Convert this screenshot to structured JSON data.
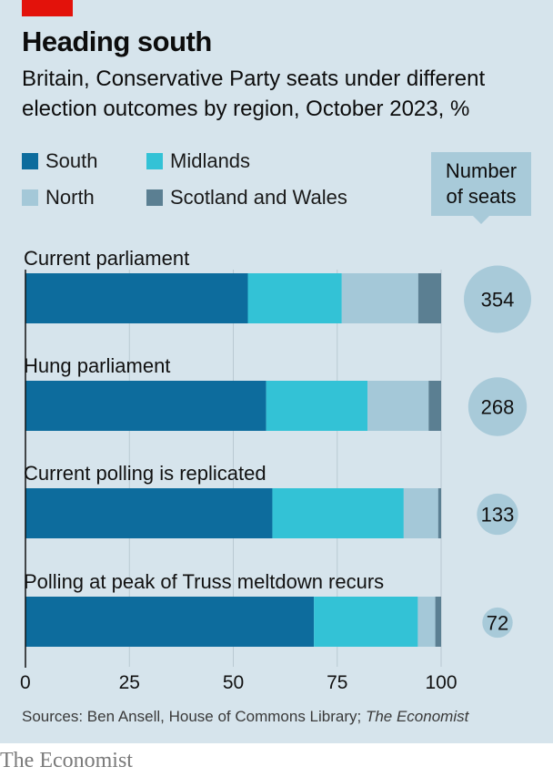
{
  "header": {
    "title": "Heading south",
    "subtitle": "Britain, Conservative Party seats under different election outcomes by region, October 2023, %"
  },
  "legend": {
    "south": "South",
    "midlands": "Midlands",
    "north": "North",
    "scotland_wales": "Scotland and Wales",
    "seats_label_line1": "Number",
    "seats_label_line2": "of seats"
  },
  "colors": {
    "south": "#0d6c9d",
    "midlands": "#33c2d6",
    "north": "#a4c8d8",
    "scotland_wales": "#5b7f92",
    "bubble": "#a8cad9",
    "panel": "#d6e4ec",
    "brand_red": "#e3120b"
  },
  "chart_data": {
    "type": "bar",
    "orientation": "horizontal",
    "stacked": true,
    "categories": [
      "Current parliament",
      "Hung parliament",
      "Current polling is replicated",
      "Polling at peak of Truss meltdown recurs"
    ],
    "series": [
      {
        "name": "South",
        "values": [
          53.5,
          57.9,
          59.4,
          69.4
        ]
      },
      {
        "name": "Midlands",
        "values": [
          22.6,
          24.4,
          31.6,
          25.0
        ]
      },
      {
        "name": "North",
        "values": [
          18.4,
          14.7,
          8.3,
          4.2
        ]
      },
      {
        "name": "Scotland and Wales",
        "values": [
          5.5,
          3.0,
          0.7,
          1.4
        ]
      }
    ],
    "seats": [
      354,
      268,
      133,
      72
    ],
    "xlim": [
      0,
      100
    ],
    "x_ticks": [
      0,
      25,
      50,
      75,
      100
    ],
    "x_tick_labels": [
      "0",
      "25",
      "50",
      "75",
      "100"
    ]
  },
  "footer": {
    "source_prefix": "Sources: Ben Ansell, House of Commons Library; ",
    "source_italic": "The Economist",
    "brand": "The Economist"
  }
}
